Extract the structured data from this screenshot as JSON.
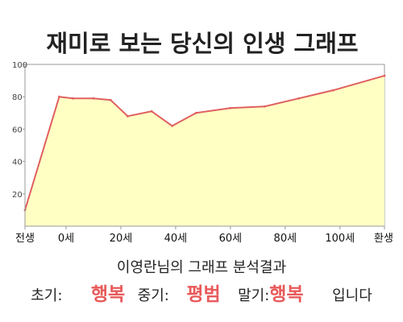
{
  "chart_data": {
    "type": "area",
    "title": "재미로 보는 당신의 인생 그래프",
    "x": [
      0,
      10,
      14,
      20,
      25,
      30,
      37,
      43,
      50,
      60,
      70,
      80,
      90,
      105
    ],
    "y": [
      10,
      80,
      79,
      79,
      78,
      68,
      71,
      62,
      70,
      73,
      74,
      79,
      84,
      93
    ],
    "xlim": [
      0,
      105
    ],
    "ylim": [
      0,
      100
    ],
    "x_ticks": [
      {
        "x": 0,
        "label": "전생"
      },
      {
        "x": 12,
        "label": "0세"
      },
      {
        "x": 28,
        "label": "20세"
      },
      {
        "x": 44,
        "label": "40세"
      },
      {
        "x": 60,
        "label": "60세"
      },
      {
        "x": 76,
        "label": "80세"
      },
      {
        "x": 92,
        "label": "100세"
      },
      {
        "x": 105,
        "label": "환생"
      }
    ],
    "y_ticks": [
      20,
      40,
      60,
      80,
      100
    ],
    "grid": false,
    "colors": {
      "line": "#e06060",
      "fill": "#ffffc4",
      "axis": "#999999"
    }
  },
  "summary": {
    "title": "이영란님의 그래프 분석결과",
    "early_label": "초기:",
    "early_value": "행복",
    "mid_label": "중기:",
    "mid_value": "평범",
    "late_label": "말기:",
    "late_value": "행복",
    "ending": "입니다"
  }
}
